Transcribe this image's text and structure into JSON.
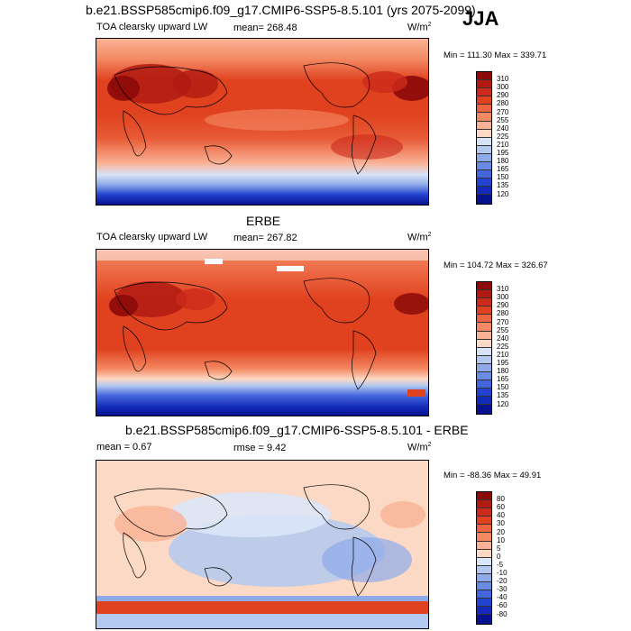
{
  "season": "JJA",
  "panels": [
    {
      "title": "b.e21.BSSP585cmip6.f09_g17.CMIP6-SSP5-8.5.101 (yrs 2075-2099)",
      "left_label": "TOA clearsky upward LW",
      "center_label": "mean= 268.48",
      "units": "W/m",
      "units_sup": "2",
      "minmax": "Min = 111.30 Max = 339.71"
    },
    {
      "title": "ERBE",
      "left_label": "TOA clearsky upward LW",
      "center_label": "mean= 267.82",
      "units": "W/m",
      "units_sup": "2",
      "minmax": "Min = 104.72 Max = 326.67"
    },
    {
      "title": "b.e21.BSSP585cmip6.f09_g17.CMIP6-SSP5-8.5.101 - ERBE",
      "left_label": "mean =   0.67",
      "center_label": "rmse =   9.42",
      "units": "W/m",
      "units_sup": "2",
      "minmax": "Min = -88.36 Max =  49.91"
    }
  ],
  "colorbars": {
    "field": {
      "labels": [
        "310",
        "300",
        "290",
        "280",
        "270",
        "255",
        "240",
        "225",
        "210",
        "195",
        "180",
        "165",
        "150",
        "135",
        "120"
      ],
      "colors": [
        "#8c0a0a",
        "#b01a12",
        "#cc2a1a",
        "#e0421f",
        "#ec6440",
        "#f38a64",
        "#f9b295",
        "#fcd9c4",
        "#d7e3f7",
        "#b3c9f0",
        "#8eaae9",
        "#6a8be3",
        "#4466dc",
        "#2243d0",
        "#1329b8",
        "#07128f"
      ]
    },
    "diff": {
      "labels": [
        "80",
        "60",
        "40",
        "30",
        "20",
        "10",
        "5",
        "0",
        "-5",
        "-10",
        "-20",
        "-30",
        "-40",
        "-60",
        "-80"
      ],
      "colors": [
        "#8c0a0a",
        "#b01a12",
        "#cc2a1a",
        "#e0421f",
        "#ec6440",
        "#f38a64",
        "#f9b295",
        "#fcd9c4",
        "#dbe6f8",
        "#b3c9f0",
        "#8eaae9",
        "#6a8be3",
        "#4466dc",
        "#2243d0",
        "#1329b8",
        "#07128f"
      ]
    }
  }
}
